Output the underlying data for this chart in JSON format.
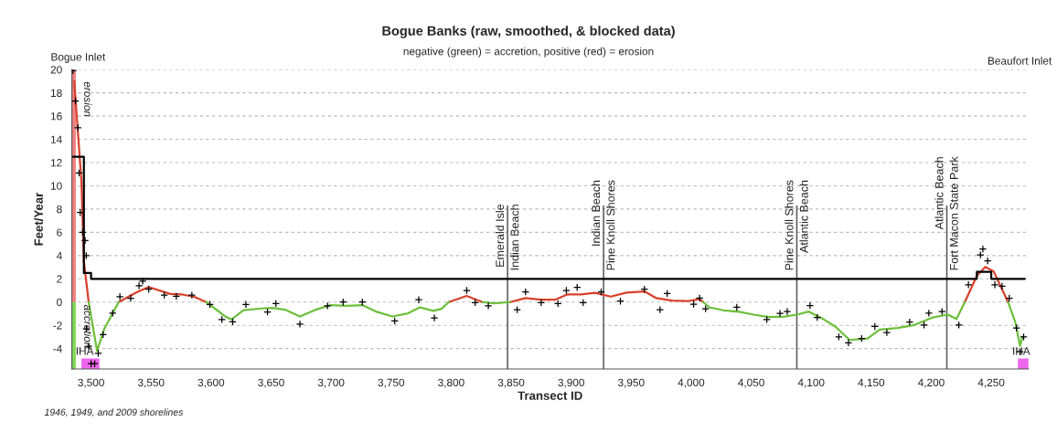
{
  "chart_data": {
    "type": "line",
    "title": "Bogue Banks (raw, smoothed, & blocked data)",
    "subtitle": "negative (green) = accretion, positive (red) = erosion",
    "xlabel": "Transect ID",
    "ylabel": "Feet/Year",
    "xlim": [
      3484,
      4281
    ],
    "ylim": [
      -5.75,
      20
    ],
    "xticks": [
      {
        "value": 3500,
        "label": "3,500"
      },
      {
        "value": 3550,
        "label": "3,550"
      },
      {
        "value": 3600,
        "label": "3,600"
      },
      {
        "value": 3650,
        "label": "3,650"
      },
      {
        "value": 3700,
        "label": "3,700"
      },
      {
        "value": 3750,
        "label": "3,750"
      },
      {
        "value": 3800,
        "label": "3,800"
      },
      {
        "value": 3850,
        "label": "3,850"
      },
      {
        "value": 3900,
        "label": "3,900"
      },
      {
        "value": 3950,
        "label": "3,950"
      },
      {
        "value": 4000,
        "label": "4,000"
      },
      {
        "value": 4050,
        "label": "4,050"
      },
      {
        "value": 4100,
        "label": "4,100"
      },
      {
        "value": 4150,
        "label": "4,150"
      },
      {
        "value": 4200,
        "label": "4,200"
      },
      {
        "value": 4250,
        "label": "4,250"
      }
    ],
    "yticks": [
      -4,
      -2,
      0,
      2,
      4,
      6,
      8,
      10,
      12,
      14,
      16,
      18,
      20
    ],
    "grid": "y",
    "series": [
      {
        "type": "scatter",
        "marker": "cross",
        "color": "#000000",
        "x": [
          3485,
          3487,
          3489,
          3490,
          3491,
          3493,
          3495,
          3496,
          3496,
          3498,
          3500,
          3503,
          3506,
          3510,
          3518,
          3524,
          3533,
          3540,
          3543,
          3548,
          3561,
          3571,
          3584,
          3599,
          3609,
          3618,
          3629,
          3647,
          3654,
          3674,
          3697,
          3710,
          3726,
          3753,
          3773,
          3786,
          3813,
          3820,
          3831,
          3855,
          3862,
          3875,
          3889,
          3896,
          3905,
          3910,
          3925,
          3941,
          3961,
          3974,
          3980,
          4002,
          4007,
          4012,
          4038,
          4063,
          4074,
          4080,
          4099,
          4105,
          4123,
          4131,
          4142,
          4153,
          4163,
          4182,
          4194,
          4198,
          4209,
          4223,
          4231,
          4241,
          4243,
          4247,
          4253,
          4259,
          4265,
          4271,
          4274,
          4277
        ],
        "values": [
          19.9,
          17.3,
          15.0,
          11.1,
          7.7,
          6.0,
          5.3,
          4.0,
          -2.3,
          -3.8,
          -5.3,
          -5.3,
          -4.4,
          -2.8,
          -0.95,
          0.47,
          0.33,
          1.4,
          1.8,
          1.1,
          0.6,
          0.5,
          0.6,
          -0.2,
          -1.5,
          -1.7,
          -0.2,
          -0.85,
          -0.13,
          -1.89,
          -0.32,
          0,
          0,
          -1.63,
          0.2,
          -1.37,
          1.0,
          -0.05,
          -0.32,
          -0.66,
          0.87,
          -0.05,
          -0.13,
          1.0,
          1.26,
          -0.05,
          0.87,
          0.08,
          1.1,
          -0.66,
          0.74,
          -0.18,
          0.34,
          -0.58,
          -0.45,
          -1.5,
          -0.97,
          -0.82,
          -0.31,
          -1.33,
          -3.0,
          -3.51,
          -3.13,
          -2.1,
          -2.62,
          -1.72,
          -1.97,
          -0.95,
          -0.82,
          -1.97,
          1.49,
          4.05,
          4.56,
          3.54,
          1.49,
          1.36,
          0.33,
          -2.23,
          -4.28,
          -3.0
        ]
      },
      {
        "color": "#d9402b",
        "x": [
          3486,
          3492,
          3494,
          3498,
          3510,
          3523,
          3538,
          3548,
          3566,
          3576,
          3586,
          3596,
          3700,
          3798,
          3813,
          3826,
          3838,
          3849,
          3862,
          3875,
          3887,
          3897,
          3908,
          3920,
          3933,
          3946,
          3961,
          3971,
          3984,
          3997,
          4007,
          4010,
          4100,
          4228,
          4238,
          4245,
          4252,
          4264
        ],
        "values": [
          19.0,
          10.3,
          3.5,
          0,
          null,
          0,
          0.85,
          1.3,
          0.7,
          0.65,
          0.45,
          0,
          null,
          0,
          0.53,
          0,
          null,
          0,
          0.34,
          0.21,
          0.21,
          0.66,
          0.66,
          0.79,
          0.47,
          0.82,
          0.92,
          0.34,
          0.13,
          0.08,
          0.26,
          0,
          null,
          0,
          2.26,
          3.03,
          2.64,
          0
        ]
      },
      {
        "color": "#6cbf3a",
        "x": [
          3498,
          3505,
          3511,
          3523,
          3560,
          3596,
          3612,
          3617,
          3627,
          3642,
          3651,
          3662,
          3674,
          3687,
          3700,
          3713,
          3726,
          3738,
          3751,
          3764,
          3774,
          3785,
          3792,
          3798,
          3812,
          3826,
          3836,
          3849,
          3900,
          4010,
          4015,
          4027,
          4040,
          4053,
          4065,
          4078,
          4088,
          4098,
          4110,
          4120,
          4132,
          4147,
          4157,
          4172,
          4186,
          4201,
          4214,
          4221,
          4228,
          4245,
          4264,
          4270,
          4274,
          4276
        ],
        "values": [
          0,
          -4.2,
          -2.3,
          0,
          null,
          0,
          -1.25,
          -1.5,
          -0.7,
          -0.55,
          -0.5,
          -0.66,
          -1.24,
          -0.66,
          -0.26,
          -0.32,
          -0.26,
          -0.84,
          -1.24,
          -0.97,
          -0.45,
          -0.76,
          -0.58,
          0,
          null,
          0,
          -0.1,
          0,
          null,
          0,
          -0.45,
          -0.71,
          -0.84,
          -1.1,
          -1.29,
          -1.24,
          -1.08,
          -0.82,
          -1.46,
          -2.1,
          -3.26,
          -3.13,
          -2.36,
          -2.23,
          -1.97,
          -1.33,
          -1.08,
          -1.46,
          0,
          null,
          0,
          -1.72,
          -3.77,
          -3.0
        ]
      },
      {
        "type": "step",
        "color": "#000000",
        "x": [
          3485,
          3494,
          3500,
          4238,
          4250,
          4278
        ],
        "values": [
          12.5,
          2.5,
          2.0,
          2.6,
          2.0,
          2.0
        ]
      }
    ],
    "ref_lines": [
      {
        "axis": "x",
        "value": 3847,
        "label": "Emerald Isle\nIndian Beach",
        "color": "#555555"
      },
      {
        "axis": "x",
        "value": 3927,
        "label": "Indian Beach\nPine Knoll Shores",
        "color": "#555555"
      },
      {
        "axis": "x",
        "value": 4088,
        "label": "Pine Knoll Shores\nAtlantic Beach",
        "color": "#555555"
      },
      {
        "axis": "x",
        "value": 4213,
        "label": "Atlantic Beach\nFort Macon State Park",
        "color": "#555555"
      }
    ],
    "annotations": [
      "Bogue Inlet",
      "Beaufort Inlet",
      "1946, 1949, and 2009 shorelines",
      "erosion",
      "accretion",
      "IHA",
      "IHA"
    ]
  }
}
